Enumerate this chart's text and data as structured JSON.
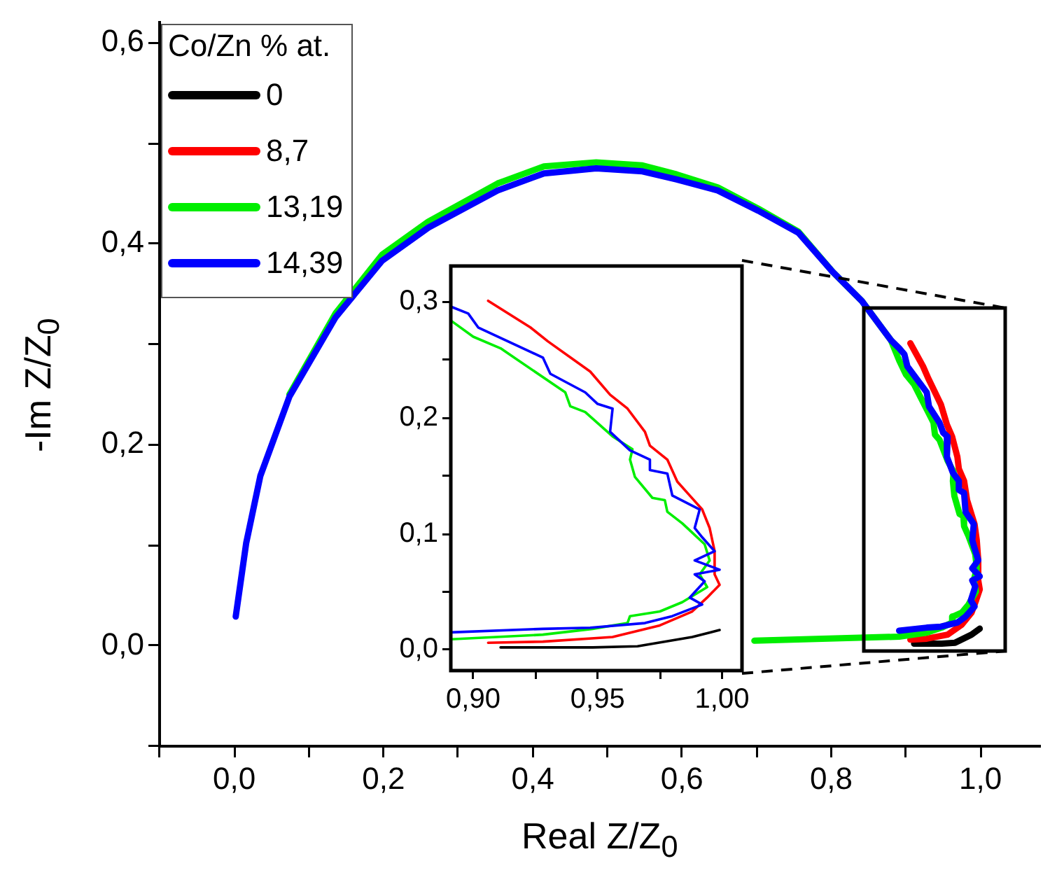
{
  "chart_data": [
    {
      "type": "line",
      "xlabel": "Real Z/Z$_{0}$",
      "ylabel": "-Im Z/Z$_{0}$",
      "legend_title": "Co/Zn % at.",
      "legend": "top left",
      "marker": "none",
      "grid": false,
      "xlim": [
        -0.1,
        1.08
      ],
      "ylim": [
        -0.1,
        0.62
      ],
      "xticks": [
        {
          "value": -0.1,
          "label": null
        },
        {
          "value": 0,
          "label": "0,0"
        },
        {
          "value": 0.1,
          "label": null
        },
        {
          "value": 0.2,
          "label": "0,2"
        },
        {
          "value": 0.3,
          "label": null
        },
        {
          "value": 0.4,
          "label": "0,4"
        },
        {
          "value": 0.5,
          "label": null
        },
        {
          "value": 0.6,
          "label": "0,6"
        },
        {
          "value": 0.7,
          "label": null
        },
        {
          "value": 0.8,
          "label": "0,8"
        },
        {
          "value": 0.9,
          "label": null
        },
        {
          "value": 1,
          "label": "1,0"
        }
      ],
      "yticks": [
        {
          "value": -0.1,
          "label": null
        },
        {
          "value": 0,
          "label": "0,0"
        },
        {
          "value": 0.1,
          "label": null
        },
        {
          "value": 0.2,
          "label": "0,2"
        },
        {
          "value": 0.3,
          "label": null
        },
        {
          "value": 0.4,
          "label": "0,4"
        },
        {
          "value": 0.5,
          "label": null
        },
        {
          "value": 0.6,
          "label": "0,6"
        }
      ],
      "series": [
        {
          "name": "0",
          "color": "#000000",
          "x": [
            0.911,
            0.948,
            0.966,
            0.988,
            0.999
          ],
          "values": [
            0.002,
            0.002,
            0.003,
            0.011,
            0.017
          ]
        },
        {
          "name": "8,7",
          "color": "#ff0000",
          "x": [
            0.906,
            0.923,
            0.93,
            0.947,
            0.955,
            0.962,
            0.969,
            0.971,
            0.978,
            0.982,
            0.987,
            0.992,
            0.995,
            0.997,
            0.997,
            0.999,
            0.994,
            0.988,
            0.975,
            0.956,
            0.928,
            0.906
          ],
          "values": [
            0.301,
            0.278,
            0.266,
            0.24,
            0.22,
            0.208,
            0.188,
            0.176,
            0.164,
            0.145,
            0.133,
            0.121,
            0.105,
            0.085,
            0.065,
            0.056,
            0.045,
            0.033,
            0.021,
            0.011,
            0.007,
            0.006
          ]
        },
        {
          "name": "13,19",
          "color": "#00ee00",
          "x": [
            0.074,
            0.136,
            0.198,
            0.26,
            0.353,
            0.415,
            0.485,
            0.547,
            0.593,
            0.648,
            0.702,
            0.756,
            0.802,
            0.841,
            0.88,
            0.891,
            0.9,
            0.911,
            0.937,
            0.939,
            0.945,
            0.956,
            0.964,
            0.963,
            0.965,
            0.972,
            0.977,
            0.978,
            0.984,
            0.988,
            0.993,
            0.995,
            0.991,
            0.994,
            0.984,
            0.975,
            0.963,
            0.962,
            0.948,
            0.928,
            0.891,
            0.697
          ],
          "values": [
            0.25,
            0.331,
            0.389,
            0.422,
            0.46,
            0.477,
            0.481,
            0.478,
            0.469,
            0.456,
            0.435,
            0.412,
            0.372,
            0.343,
            0.304,
            0.284,
            0.27,
            0.26,
            0.222,
            0.21,
            0.205,
            0.184,
            0.173,
            0.164,
            0.149,
            0.131,
            0.129,
            0.119,
            0.109,
            0.101,
            0.091,
            0.077,
            0.065,
            0.054,
            0.041,
            0.033,
            0.029,
            0.023,
            0.018,
            0.013,
            0.009,
            0.005
          ]
        },
        {
          "name": "14,39",
          "color": "#0000ff",
          "x": [
            0.002,
            0.016,
            0.035,
            0.074,
            0.136,
            0.198,
            0.26,
            0.353,
            0.415,
            0.485,
            0.547,
            0.593,
            0.648,
            0.702,
            0.756,
            0.802,
            0.841,
            0.88,
            0.891,
            0.898,
            0.902,
            0.928,
            0.931,
            0.945,
            0.95,
            0.956,
            0.955,
            0.963,
            0.971,
            0.971,
            0.978,
            0.98,
            0.991,
            0.989,
            0.992,
            0.997,
            0.989,
            0.999,
            0.989,
            0.993,
            0.987,
            0.992,
            0.98,
            0.969,
            0.947,
            0.928,
            0.891
          ],
          "values": [
            0.029,
            0.102,
            0.169,
            0.248,
            0.327,
            0.383,
            0.416,
            0.453,
            0.47,
            0.475,
            0.472,
            0.464,
            0.453,
            0.433,
            0.411,
            0.372,
            0.343,
            0.304,
            0.296,
            0.29,
            0.278,
            0.252,
            0.238,
            0.222,
            0.212,
            0.208,
            0.188,
            0.172,
            0.164,
            0.155,
            0.152,
            0.133,
            0.121,
            0.105,
            0.097,
            0.085,
            0.077,
            0.069,
            0.065,
            0.059,
            0.045,
            0.039,
            0.029,
            0.023,
            0.019,
            0.018,
            0.015
          ]
        }
      ]
    },
    {
      "type": "line",
      "legend": false,
      "marker": "none",
      "grid": false,
      "xlim": [
        0.891,
        1.008
      ],
      "ylim": [
        -0.018,
        0.331
      ],
      "xticks": [
        {
          "value": 0.9,
          "label": "0,90"
        },
        {
          "value": 0.925,
          "label": null
        },
        {
          "value": 0.95,
          "label": "0,95"
        },
        {
          "value": 0.975,
          "label": null
        },
        {
          "value": 1,
          "label": "1,00"
        }
      ],
      "yticks": [
        {
          "value": 0,
          "label": "0,0"
        },
        {
          "value": 0.05,
          "label": null
        },
        {
          "value": 0.1,
          "label": "0,1"
        },
        {
          "value": 0.15,
          "label": null
        },
        {
          "value": 0.2,
          "label": "0,2"
        },
        {
          "value": 0.25,
          "label": null
        },
        {
          "value": 0.3,
          "label": "0,3"
        }
      ],
      "series": [
        {
          "color": "#000000",
          "x": [
            0.911,
            0.948,
            0.966,
            0.988,
            0.999
          ],
          "values": [
            0.002,
            0.002,
            0.003,
            0.011,
            0.017
          ]
        },
        {
          "color": "#ff0000",
          "x": [
            0.906,
            0.923,
            0.93,
            0.947,
            0.955,
            0.962,
            0.969,
            0.971,
            0.978,
            0.982,
            0.987,
            0.992,
            0.995,
            0.997,
            0.997,
            0.999,
            0.994,
            0.988,
            0.975,
            0.956,
            0.928,
            0.906
          ],
          "values": [
            0.301,
            0.278,
            0.266,
            0.24,
            0.22,
            0.208,
            0.188,
            0.176,
            0.164,
            0.145,
            0.133,
            0.121,
            0.105,
            0.085,
            0.065,
            0.056,
            0.045,
            0.033,
            0.021,
            0.011,
            0.007,
            0.006
          ]
        },
        {
          "color": "#00ee00",
          "x": [
            0.891,
            0.9,
            0.911,
            0.937,
            0.939,
            0.945,
            0.956,
            0.964,
            0.963,
            0.965,
            0.972,
            0.977,
            0.978,
            0.984,
            0.988,
            0.993,
            0.995,
            0.991,
            0.994,
            0.984,
            0.975,
            0.963,
            0.962,
            0.948,
            0.928,
            0.891
          ],
          "values": [
            0.284,
            0.27,
            0.26,
            0.222,
            0.21,
            0.205,
            0.184,
            0.173,
            0.164,
            0.149,
            0.131,
            0.129,
            0.119,
            0.109,
            0.101,
            0.091,
            0.077,
            0.065,
            0.054,
            0.041,
            0.033,
            0.029,
            0.023,
            0.018,
            0.013,
            0.009
          ]
        },
        {
          "color": "#0000ff",
          "x": [
            0.891,
            0.898,
            0.902,
            0.928,
            0.931,
            0.945,
            0.95,
            0.956,
            0.955,
            0.963,
            0.971,
            0.971,
            0.978,
            0.98,
            0.991,
            0.989,
            0.992,
            0.997,
            0.989,
            0.999,
            0.989,
            0.993,
            0.987,
            0.992,
            0.98,
            0.969,
            0.947,
            0.928,
            0.891
          ],
          "values": [
            0.296,
            0.29,
            0.278,
            0.252,
            0.238,
            0.222,
            0.212,
            0.208,
            0.188,
            0.172,
            0.164,
            0.155,
            0.152,
            0.133,
            0.121,
            0.105,
            0.097,
            0.085,
            0.077,
            0.069,
            0.065,
            0.059,
            0.045,
            0.039,
            0.029,
            0.023,
            0.019,
            0.018,
            0.015
          ]
        }
      ]
    }
  ]
}
